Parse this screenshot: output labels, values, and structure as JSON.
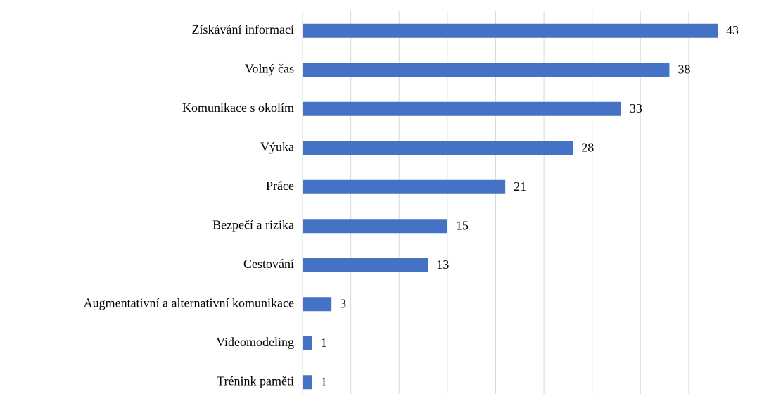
{
  "chart_data": {
    "type": "barh",
    "categories": [
      "Získávání informací",
      "Volný čas",
      "Komunikace s okolím",
      "Výuka",
      "Práce",
      "Bezpečí a rizika",
      "Cestování",
      "Augmentativní a alternativní komunikace",
      "Videomodeling",
      "Trénink paměti"
    ],
    "values": [
      43,
      38,
      33,
      28,
      21,
      15,
      13,
      3,
      1,
      1
    ],
    "color": "#4472c4",
    "xlim": [
      0,
      45
    ],
    "xticks": [
      0,
      5,
      10,
      15,
      20,
      25,
      30,
      35,
      40,
      45
    ],
    "grid": true
  }
}
